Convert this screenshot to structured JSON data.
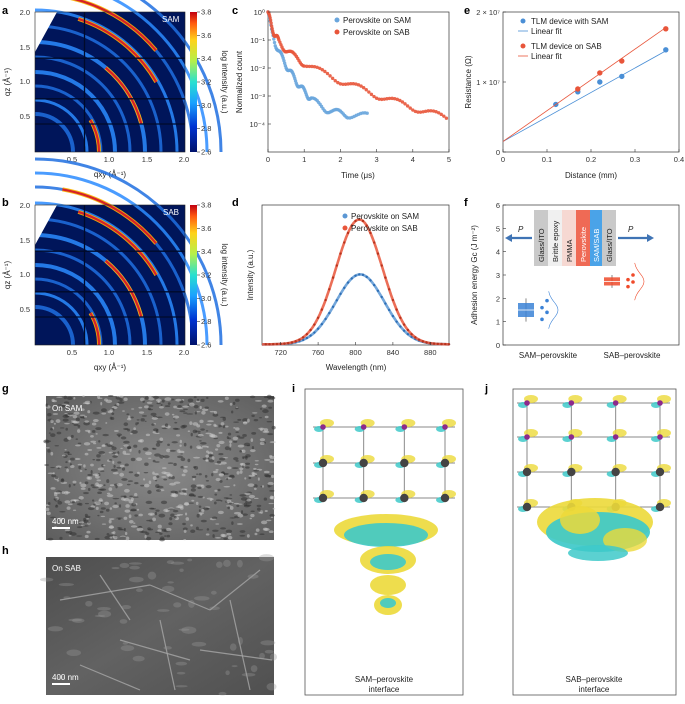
{
  "panel_labels": {
    "a": "a",
    "b": "b",
    "c": "c",
    "d": "d",
    "e": "e",
    "f": "f",
    "g": "g",
    "h": "h",
    "i": "i",
    "j": "j"
  },
  "gixd": {
    "a": {
      "tag": "SAM"
    },
    "b": {
      "tag": "SAB"
    },
    "xlabel": "qxy (Å⁻¹)",
    "ylabel": "qz (Å⁻¹)",
    "colorbar_label": "log intensity (a.u.)",
    "colorbar_ticks": [
      "3.8",
      "3.6",
      "3.4",
      "3.2",
      "3.0",
      "2.8",
      "2.6"
    ],
    "xticks": [
      "0.5",
      "1.0",
      "1.5",
      "2.0"
    ],
    "yticks_a": [
      "2.0",
      "1.5",
      "1.0",
      "0.5"
    ],
    "yticks_b": [
      "2.0",
      "1.5",
      "1.0",
      "0.5"
    ],
    "colors": {
      "bg": "#00155a",
      "ring": "#2a8bff",
      "bright": "#d62028"
    }
  },
  "chart_data": [
    {
      "id": "c",
      "type": "scatter",
      "xlabel": "Time (μs)",
      "ylabel": "Normalized count",
      "yscale": "log",
      "xlim": [
        0,
        5
      ],
      "ylim": [
        1e-05,
        1
      ],
      "xticks": [
        "0",
        "1",
        "2",
        "3",
        "4",
        "5"
      ],
      "yticks": [
        "10⁰",
        "10⁻¹",
        "10⁻²",
        "10⁻³",
        "10⁻⁴"
      ],
      "series": [
        {
          "name": "Perovskite on SAM",
          "color": "#6aa6dd",
          "points": [
            [
              0,
              1
            ],
            [
              0.1,
              0.2
            ],
            [
              0.2,
              0.08
            ],
            [
              0.3,
              0.04
            ],
            [
              0.4,
              0.022
            ],
            [
              0.5,
              0.013
            ],
            [
              0.6,
              0.008
            ],
            [
              0.7,
              0.005
            ],
            [
              0.8,
              0.0032
            ],
            [
              0.9,
              0.0021
            ],
            [
              1.0,
              0.0015
            ],
            [
              1.1,
              0.0011
            ],
            [
              1.2,
              0.0008
            ],
            [
              1.4,
              0.0005
            ],
            [
              1.6,
              0.00035
            ],
            [
              1.8,
              0.00028
            ],
            [
              2.0,
              0.00025
            ],
            [
              2.2,
              0.00022
            ],
            [
              2.5,
              0.0002
            ],
            [
              2.8,
              0.0002
            ]
          ]
        },
        {
          "name": "Perovskite on SAB",
          "color": "#e8553a",
          "points": [
            [
              0,
              1
            ],
            [
              0.1,
              0.3
            ],
            [
              0.2,
              0.15
            ],
            [
              0.3,
              0.09
            ],
            [
              0.5,
              0.045
            ],
            [
              0.75,
              0.025
            ],
            [
              1.0,
              0.015
            ],
            [
              1.5,
              0.007
            ],
            [
              2.0,
              0.0036
            ],
            [
              2.5,
              0.002
            ],
            [
              3.0,
              0.0011
            ],
            [
              3.5,
              0.00065
            ],
            [
              4.0,
              0.0004
            ],
            [
              4.5,
              0.00025
            ],
            [
              5.0,
              0.00016
            ]
          ]
        }
      ]
    },
    {
      "id": "d",
      "type": "line",
      "xlabel": "Wavelength (nm)",
      "ylabel": "Intensity (a.u.)",
      "xlim": [
        700,
        900
      ],
      "ylim": [
        0,
        1.12
      ],
      "xticks": [
        "720",
        "760",
        "800",
        "840",
        "880"
      ],
      "series": [
        {
          "name": "Perovskite on SAM",
          "color": "#5b97d4",
          "center": 805,
          "sigma": 26,
          "peak": 0.56
        },
        {
          "name": "Perovskite on SAB",
          "color": "#e8553a",
          "center": 804,
          "sigma": 25,
          "peak": 1.0
        }
      ]
    },
    {
      "id": "e",
      "type": "scatter",
      "xlabel": "Distance (mm)",
      "ylabel": "Resistance (Ω)",
      "xlim": [
        0,
        0.4
      ],
      "ylim": [
        0,
        20000000
      ],
      "xticks": [
        "0",
        "0.1",
        "0.2",
        "0.3",
        "0.4"
      ],
      "yticks": [
        "0",
        "1 × 10⁷",
        "2 × 10⁷"
      ],
      "series": [
        {
          "name": "TLM device with SAM",
          "fit_name": "Linear fit",
          "color": "#4a8fd6",
          "x": [
            0.12,
            0.17,
            0.22,
            0.27,
            0.37
          ],
          "y": [
            6800000,
            8600000,
            10000000,
            10800000,
            14600000
          ],
          "fit": [
            1500000,
            35000000
          ]
        },
        {
          "name": "TLM device on SAB",
          "fit_name": "Linear fit",
          "color": "#e8553a",
          "x": [
            0.17,
            0.22,
            0.27,
            0.37
          ],
          "y": [
            9000000,
            11300000,
            13000000,
            17600000
          ],
          "fit": [
            1500000,
            44000000
          ]
        }
      ]
    },
    {
      "id": "f",
      "type": "box",
      "ylabel": "Adhesion energy Gc (J m⁻²)",
      "ylim": [
        0,
        6
      ],
      "yticks": [
        "0",
        "1",
        "2",
        "3",
        "4",
        "5",
        "6"
      ],
      "categories": [
        "SAM–perovskite",
        "SAB–perovskite"
      ],
      "series": [
        {
          "name": "SAM–perovskite",
          "color": "#3b82d6",
          "q1": 1.2,
          "median": 1.5,
          "q3": 1.8,
          "min": 1.0,
          "max": 2.0,
          "points": [
            1.1,
            1.4,
            1.6,
            1.9
          ]
        },
        {
          "name": "SAB–perovskite",
          "color": "#ef4a2a",
          "q1": 2.55,
          "median": 2.72,
          "q3": 2.9,
          "min": 2.45,
          "max": 3.0,
          "points": [
            2.5,
            2.7,
            2.8,
            3.0
          ]
        }
      ],
      "schematic": {
        "layers": [
          "Glass/ITO",
          "Brittle epoxy",
          "PMMA",
          "Perovskite",
          "SAM/SAB",
          "Glass/ITO"
        ],
        "force": "P"
      }
    }
  ],
  "sem": {
    "g": {
      "tag": "On SAM",
      "scale": "400 nm"
    },
    "h": {
      "tag": "On SAB",
      "scale": "400 nm"
    }
  },
  "dft": {
    "i": {
      "caption_line1": "SAM–perovskite",
      "caption_line2": "interface"
    },
    "j": {
      "caption_line1": "SAB–perovskite",
      "caption_line2": "interface"
    }
  }
}
